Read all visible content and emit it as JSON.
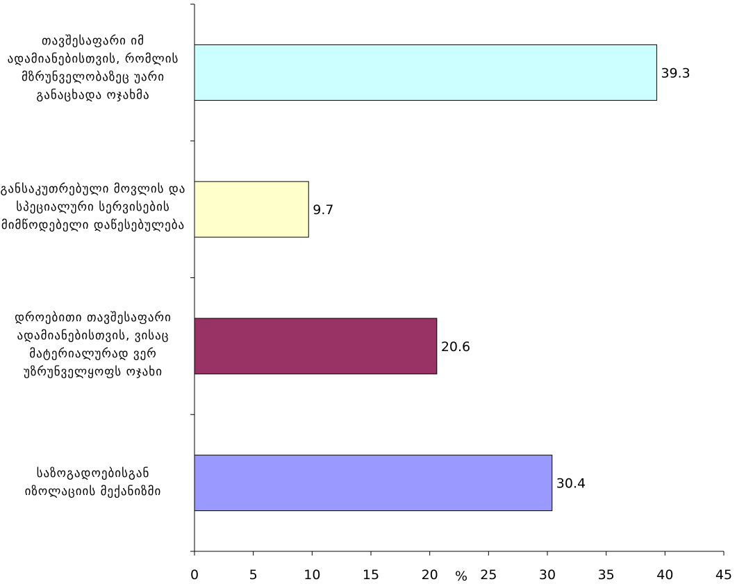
{
  "chart_data": {
    "type": "bar",
    "orientation": "horizontal",
    "categories": [
      "თავშესაფარი იმ ადამიანებისთვის, რომლის მზრუნველობაზეც უარი განაცხადა ოჯახმა",
      "განსაკუთრებული მოვლის და სპეციალური სერვისების მიმწოდებელი დაწესებულება",
      "დროებითი თავშესაფარი ადამიანებისთვის, ვისაც მატერიალურად ვერ უზრუნველყოფს ოჯახი",
      "საზოგადოებისგან იზოლაციის მექანიზმი"
    ],
    "values": [
      39.3,
      9.7,
      20.6,
      30.4
    ],
    "value_labels": [
      "39.3",
      "9.7",
      "20.6",
      "30.4"
    ],
    "colors": [
      "#ccffff",
      "#ffffcc",
      "#993366",
      "#9999ff"
    ],
    "xlim": [
      0,
      45
    ],
    "xticks": [
      "0",
      "5",
      "10",
      "15",
      "20",
      "25",
      "30",
      "35",
      "40",
      "45"
    ],
    "xtick_values": [
      0,
      5,
      10,
      15,
      20,
      25,
      30,
      35,
      40,
      45
    ],
    "xunit": "%",
    "title": "",
    "xlabel": "",
    "ylabel": "",
    "grid": false,
    "legend": "none"
  }
}
